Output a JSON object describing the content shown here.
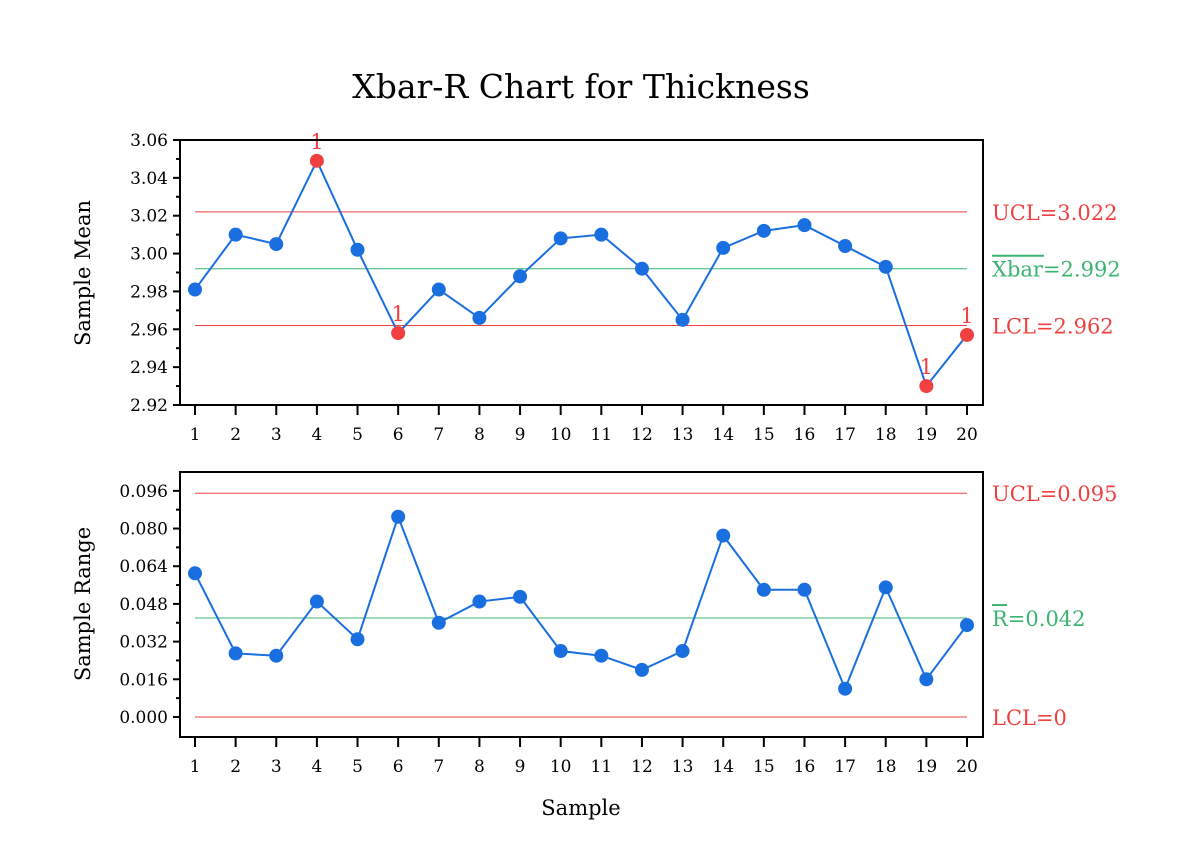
{
  "chart_data": [
    {
      "type": "line",
      "title": "Xbar-R Chart for Thickness",
      "xlabel": "",
      "ylabel": "Sample Mean",
      "x": [
        1,
        2,
        3,
        4,
        5,
        6,
        7,
        8,
        9,
        10,
        11,
        12,
        13,
        14,
        15,
        16,
        17,
        18,
        19,
        20
      ],
      "values": [
        2.981,
        3.01,
        3.005,
        3.049,
        3.002,
        2.958,
        2.981,
        2.966,
        2.988,
        3.008,
        3.01,
        2.992,
        2.965,
        3.003,
        3.012,
        3.015,
        3.004,
        2.993,
        2.93,
        2.957
      ],
      "out_of_control": [
        4,
        6,
        19,
        20
      ],
      "out_of_control_marker": "1",
      "ylim": [
        2.92,
        3.06
      ],
      "yticks": [
        "2.92",
        "2.94",
        "2.96",
        "2.98",
        "3.00",
        "3.02",
        "3.04",
        "3.06"
      ],
      "limits": {
        "ucl": {
          "value": 3.022,
          "label": "UCL=3.022"
        },
        "center": {
          "value": 2.992,
          "label": "Xbar=2.992"
        },
        "lcl": {
          "value": 2.962,
          "label": "LCL=2.962"
        }
      }
    },
    {
      "type": "line",
      "xlabel": "Sample",
      "ylabel": "Sample Range",
      "x": [
        1,
        2,
        3,
        4,
        5,
        6,
        7,
        8,
        9,
        10,
        11,
        12,
        13,
        14,
        15,
        16,
        17,
        18,
        19,
        20
      ],
      "values": [
        0.061,
        0.027,
        0.026,
        0.049,
        0.033,
        0.085,
        0.04,
        0.049,
        0.051,
        0.028,
        0.026,
        0.02,
        0.028,
        0.077,
        0.054,
        0.054,
        0.012,
        0.055,
        0.016,
        0.039
      ],
      "out_of_control": [],
      "ylim": [
        -0.0085,
        0.104
      ],
      "yticks": [
        "0.000",
        "0.016",
        "0.032",
        "0.048",
        "0.064",
        "0.080",
        "0.096"
      ],
      "limits": {
        "ucl": {
          "value": 0.095,
          "label": "UCL=0.095"
        },
        "center": {
          "value": 0.042,
          "label": "R=0.042"
        },
        "lcl": {
          "value": 0,
          "label": "LCL=0"
        }
      }
    }
  ],
  "colors": {
    "point": "#1a6fe0",
    "alarm": "#f04040",
    "limit": "#f04040",
    "center": "#3cb371"
  }
}
